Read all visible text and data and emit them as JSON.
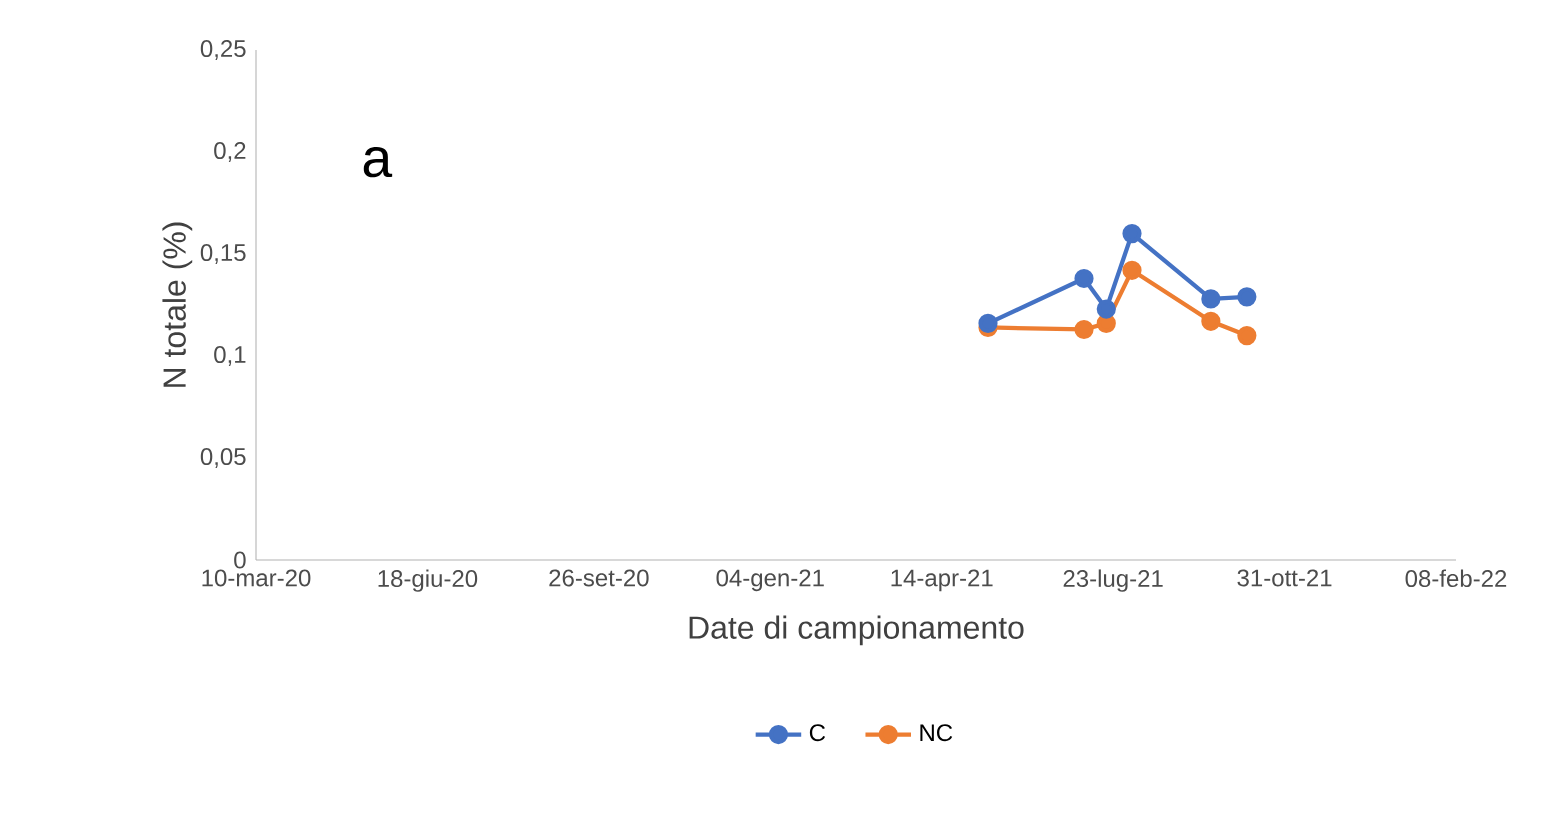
{
  "chart_data": {
    "type": "line",
    "xlabel": "Date di campionamento",
    "ylabel": "N totale (%)",
    "annotations": [
      "a"
    ],
    "x": [
      "2021-05-11",
      "2021-07-06",
      "2021-07-19",
      "2021-08-03",
      "2021-09-18",
      "2021-10-09"
    ],
    "series": [
      {
        "name": "C",
        "color": "#4472c4",
        "values": [
          0.116,
          0.138,
          0.123,
          0.16,
          0.128,
          0.129
        ]
      },
      {
        "name": "NC",
        "color": "#ed7d31",
        "values": [
          0.114,
          0.113,
          0.116,
          0.142,
          0.117,
          0.11
        ]
      }
    ],
    "xlim": [
      "2020-03-10",
      "2022-02-08"
    ],
    "xticks": [
      {
        "value": "2020-03-10",
        "label": "10-mar-20"
      },
      {
        "value": "2020-06-18",
        "label": "18-giu-20"
      },
      {
        "value": "2020-09-26",
        "label": "26-set-20"
      },
      {
        "value": "2021-01-04",
        "label": "04-gen-21"
      },
      {
        "value": "2021-04-14",
        "label": "14-apr-21"
      },
      {
        "value": "2021-07-23",
        "label": "23-lug-21"
      },
      {
        "value": "2021-10-31",
        "label": "31-ott-21"
      },
      {
        "value": "2022-02-08",
        "label": "08-feb-22"
      }
    ],
    "ylim": [
      0,
      0.25
    ],
    "yticks": [
      {
        "value": 0,
        "label": "0"
      },
      {
        "value": 0.05,
        "label": "0,05"
      },
      {
        "value": 0.1,
        "label": "0,1"
      },
      {
        "value": 0.15,
        "label": "0,15"
      },
      {
        "value": 0.2,
        "label": "0,2"
      },
      {
        "value": 0.25,
        "label": "0,25"
      }
    ],
    "grid": false,
    "legend": "bottom",
    "marker": "circle",
    "line_style": "solid"
  }
}
